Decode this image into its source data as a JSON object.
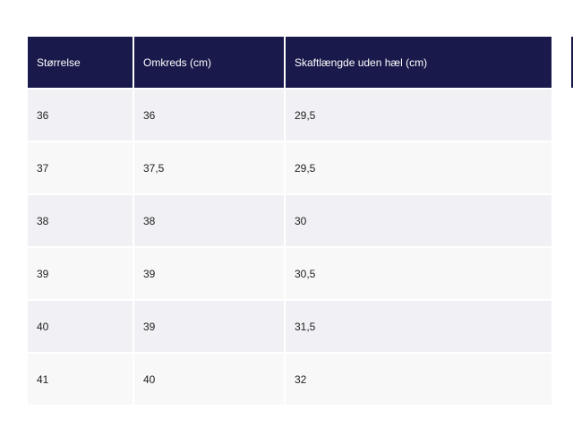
{
  "table": {
    "headers": [
      "Størrelse",
      "Omkreds (cm)",
      "Skaftlængde uden hæl (cm)"
    ],
    "rows": [
      [
        "36",
        "36",
        "29,5"
      ],
      [
        "37",
        "37,5",
        "29,5"
      ],
      [
        "38",
        "38",
        "30"
      ],
      [
        "39",
        "39",
        "30,5"
      ],
      [
        "40",
        "39",
        "31,5"
      ],
      [
        "41",
        "40",
        "32"
      ]
    ]
  },
  "colors": {
    "header_bg": "#19194b",
    "header_text": "#ffffff",
    "row_odd": "#f1f1f5",
    "row_even": "#f8f8f9",
    "cell_text": "#222222"
  }
}
